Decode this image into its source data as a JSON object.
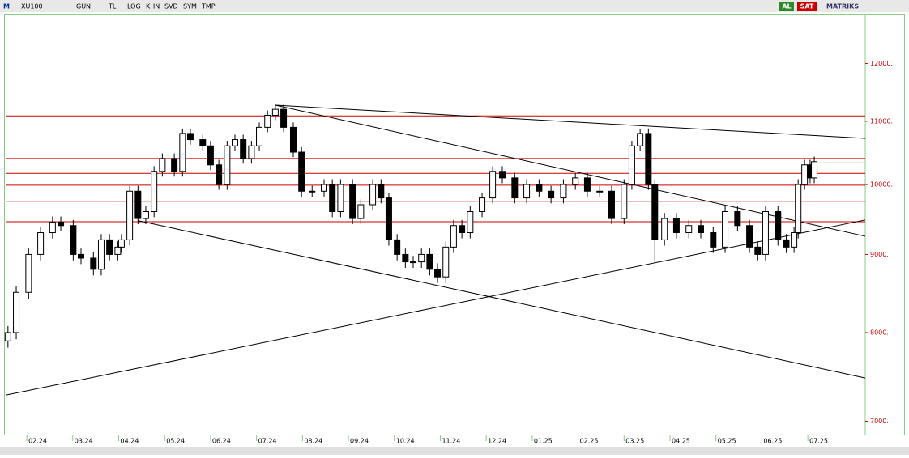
{
  "toolbar": {
    "logo": "M",
    "symbol": "XU100",
    "buttons": [
      "GUN",
      "TL",
      "LOG",
      "KHN",
      "SVD",
      "SYM",
      "TMP"
    ],
    "buy": "AL",
    "sell": "SAT",
    "brand": "MATRIKS"
  },
  "chart_data": {
    "type": "candlestick",
    "log": true,
    "x": [
      -0.41,
      -0.23,
      0.04,
      0.3,
      0.56,
      0.74,
      1.01,
      1.18,
      1.45,
      1.62,
      1.8,
      1.98,
      2.06,
      2.24,
      2.42,
      2.59,
      2.77,
      2.95,
      3.21,
      3.39,
      3.56,
      3.83,
      4.0,
      4.18,
      4.36,
      4.53,
      4.71,
      4.89,
      5.06,
      5.24,
      5.41,
      5.59,
      5.8,
      5.98,
      6.21,
      6.47,
      6.65,
      6.83,
      7.09,
      7.27,
      7.53,
      7.71,
      7.88,
      8.06,
      8.24,
      8.41,
      8.59,
      8.77,
      8.94,
      9.12,
      9.29,
      9.47,
      9.65,
      9.91,
      10.14,
      10.35,
      10.62,
      10.88,
      11.15,
      11.41,
      11.68,
      11.94,
      12.2,
      12.47,
      12.73,
      13.0,
      13.17,
      13.35,
      13.53,
      13.67,
      13.88,
      14.14,
      14.41,
      14.67,
      14.94,
      15.2,
      15.47,
      15.73,
      15.91,
      16.08,
      16.35,
      16.53,
      16.7,
      16.79,
      16.93,
      17.05,
      17.14
    ],
    "open": [
      7900,
      8000,
      8500,
      9000,
      9300,
      9450,
      9400,
      9000,
      8950,
      8800,
      9200,
      9000,
      9100,
      9200,
      9900,
      9500,
      9600,
      10200,
      10400,
      10200,
      10800,
      10700,
      10600,
      10300,
      10000,
      10600,
      10700,
      10400,
      10600,
      10900,
      11100,
      11200,
      10900,
      10500,
      9900,
      9900,
      10000,
      9600,
      10000,
      9500,
      9700,
      10000,
      9800,
      9200,
      9000,
      8900,
      8900,
      9000,
      8800,
      8700,
      9100,
      9400,
      9300,
      9600,
      9800,
      10200,
      10100,
      9800,
      10000,
      9900,
      9800,
      10000,
      10100,
      9900,
      9900,
      9500,
      10000,
      10600,
      10800,
      10000,
      9200,
      9500,
      9300,
      9400,
      9300,
      9100,
      9600,
      9400,
      9100,
      9000,
      9600,
      9200,
      9100,
      9300,
      10000,
      10300,
      10100
    ],
    "high": [
      8080,
      8580,
      9080,
      9380,
      9530,
      9530,
      9480,
      9080,
      9030,
      9280,
      9280,
      9180,
      9280,
      9980,
      9980,
      9680,
      10280,
      10480,
      10480,
      10880,
      10880,
      10780,
      10680,
      10380,
      10680,
      10780,
      10780,
      10680,
      10980,
      11180,
      11280,
      11280,
      10980,
      10580,
      9980,
      10080,
      10080,
      10080,
      10080,
      9780,
      10080,
      10080,
      9880,
      9280,
      9080,
      8980,
      9080,
      9080,
      8880,
      9180,
      9480,
      9480,
      9680,
      9880,
      10280,
      10280,
      10180,
      10080,
      10080,
      9980,
      10080,
      10180,
      10180,
      9980,
      9980,
      10080,
      10680,
      10880,
      10880,
      10080,
      9580,
      9580,
      9480,
      9480,
      9380,
      9680,
      9680,
      9480,
      9180,
      9680,
      9680,
      9280,
      9380,
      10080,
      10380,
      10380,
      10430
    ],
    "low": [
      7820,
      7920,
      8420,
      8920,
      9220,
      9320,
      8920,
      8870,
      8720,
      8720,
      8920,
      8920,
      9020,
      9120,
      9420,
      9420,
      9520,
      10120,
      10120,
      10120,
      10620,
      10520,
      10220,
      9920,
      9920,
      10520,
      10320,
      10320,
      10520,
      10820,
      11020,
      10820,
      10420,
      9820,
      9820,
      9820,
      9520,
      9520,
      9420,
      9420,
      9620,
      9720,
      9120,
      8920,
      8820,
      8820,
      8820,
      8720,
      8620,
      8620,
      9020,
      9220,
      9220,
      9520,
      9720,
      10020,
      9720,
      9720,
      9820,
      9720,
      9720,
      9920,
      9820,
      9820,
      9420,
      9420,
      9920,
      10520,
      9920,
      8900,
      9120,
      9220,
      9220,
      9220,
      9020,
      9020,
      9320,
      9020,
      8920,
      8920,
      9120,
      9020,
      9020,
      9220,
      9920,
      10020,
      10020
    ],
    "close": [
      8000,
      8500,
      9000,
      9300,
      9450,
      9400,
      9000,
      8950,
      8800,
      9200,
      9000,
      9100,
      9200,
      9900,
      9500,
      9600,
      10200,
      10400,
      10200,
      10800,
      10700,
      10600,
      10300,
      10000,
      10600,
      10700,
      10400,
      10600,
      10900,
      11100,
      11200,
      10900,
      10500,
      9900,
      9900,
      10000,
      9600,
      10000,
      9500,
      9700,
      10000,
      9800,
      9200,
      9000,
      8900,
      8900,
      9000,
      8800,
      8700,
      9100,
      9400,
      9300,
      9600,
      9800,
      10200,
      10100,
      9800,
      10000,
      9900,
      9800,
      10000,
      10100,
      9900,
      9900,
      9500,
      10000,
      10600,
      10800,
      10000,
      9200,
      9500,
      9300,
      9400,
      9300,
      9100,
      9600,
      9400,
      9100,
      9000,
      9600,
      9200,
      9100,
      9300,
      10000,
      10300,
      10100,
      10350
    ],
    "color": "#000000",
    "xlim": [
      -0.46,
      18.25
    ],
    "ylim": [
      6860,
      12920
    ],
    "xticks": [
      {
        "value": 0,
        "label": "02.24"
      },
      {
        "value": 1,
        "label": "03.24"
      },
      {
        "value": 2,
        "label": "04.24"
      },
      {
        "value": 3,
        "label": "05.24"
      },
      {
        "value": 4,
        "label": "06.24"
      },
      {
        "value": 5,
        "label": "07.24"
      },
      {
        "value": 6,
        "label": "08.24"
      },
      {
        "value": 7,
        "label": "09.24"
      },
      {
        "value": 8,
        "label": "10.24"
      },
      {
        "value": 9,
        "label": "11.24"
      },
      {
        "value": 10,
        "label": "12.24"
      },
      {
        "value": 11,
        "label": "01.25"
      },
      {
        "value": 12,
        "label": "02.25"
      },
      {
        "value": 13,
        "label": "03.25"
      },
      {
        "value": 14,
        "label": "04.25"
      },
      {
        "value": 15,
        "label": "05.25"
      },
      {
        "value": 16,
        "label": "06.25"
      },
      {
        "value": 17,
        "label": "07.25"
      }
    ],
    "yticks": [
      {
        "value": 7000,
        "label": "7000."
      },
      {
        "value": 8000,
        "label": "8000."
      },
      {
        "value": 9000,
        "label": "9000."
      },
      {
        "value": 10000,
        "label": "10000."
      },
      {
        "value": 11000,
        "label": "11000."
      },
      {
        "value": 12000,
        "label": "12000."
      }
    ],
    "levels": [
      {
        "value": 11090,
        "color": "#cc0000"
      },
      {
        "value": 10400,
        "color": "#cc0000"
      },
      {
        "value": 10170,
        "color": "#cc0000"
      },
      {
        "value": 9990,
        "color": "#cc0000"
      },
      {
        "value": 9750,
        "color": "#cc0000"
      },
      {
        "value": 9455,
        "color": "#cc0000"
      },
      {
        "value": 10330,
        "color": "#22aa22",
        "from": 17.17
      }
    ],
    "trendlines": [
      {
        "x": [
          5.41,
          18.25
        ],
        "y": [
          11270,
          10720
        ]
      },
      {
        "x": [
          5.41,
          18.25
        ],
        "y": [
          11270,
          9250
        ]
      },
      {
        "x": [
          -0.46,
          18.25
        ],
        "y": [
          7280,
          9480
        ]
      },
      {
        "x": [
          2.42,
          18.25
        ],
        "y": [
          9470,
          7470
        ]
      }
    ]
  }
}
